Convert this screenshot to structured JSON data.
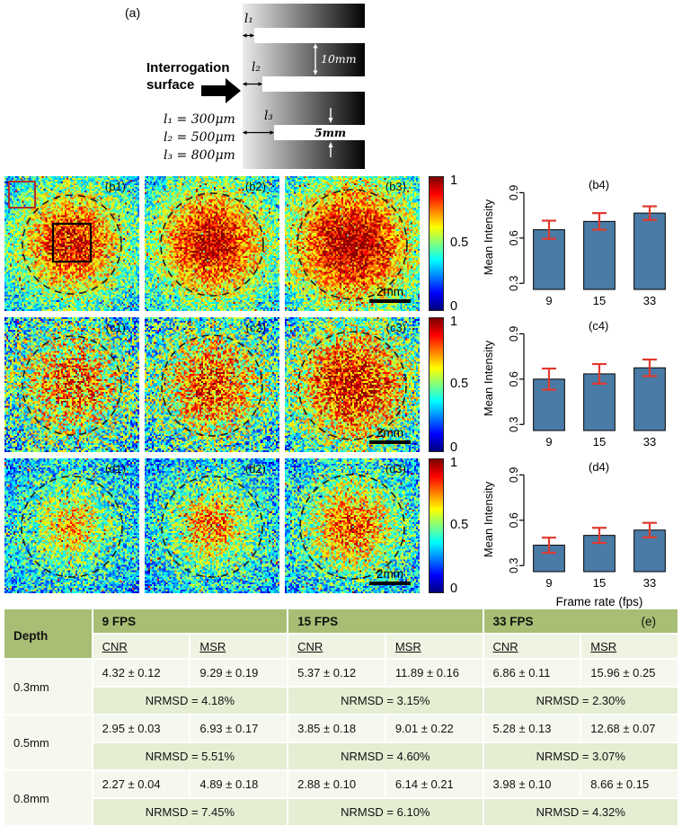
{
  "panel_a": {
    "label": "(a)",
    "interrogation_line1": "Interrogation",
    "interrogation_line2": "surface",
    "arrow_labels": [
      "l₁",
      "l₂",
      "l₃"
    ],
    "equations": [
      "l₁ = 300μm",
      "l₂ = 500μm",
      "l₃ = 800μm"
    ],
    "dim_10mm": "10mm",
    "dim_5mm": "5mm"
  },
  "colorbar_ticks": [
    "1",
    "0.5",
    "0"
  ],
  "heatmaps": {
    "rows": [
      {
        "depth": "0.3mm",
        "panels": [
          {
            "label": "(b1)",
            "seed": 101,
            "base": 0.52,
            "amp": 0.38,
            "sigma": 0.45,
            "noise": 0.2,
            "circle_r": 55,
            "roi": true
          },
          {
            "label": "(b2)",
            "seed": 102,
            "base": 0.52,
            "amp": 0.42,
            "sigma": 0.5,
            "noise": 0.2,
            "circle_r": 57
          },
          {
            "label": "(b3)",
            "seed": 103,
            "base": 0.53,
            "amp": 0.45,
            "sigma": 0.58,
            "noise": 0.2,
            "circle_r": 61,
            "scalebar": "2mm"
          }
        ]
      },
      {
        "depth": "0.5mm",
        "panels": [
          {
            "label": "(c1)",
            "seed": 201,
            "base": 0.5,
            "amp": 0.26,
            "sigma": 0.48,
            "noise": 0.3,
            "circle_r": 55
          },
          {
            "label": "(c2)",
            "seed": 202,
            "base": 0.5,
            "amp": 0.3,
            "sigma": 0.48,
            "noise": 0.28,
            "circle_r": 56
          },
          {
            "label": "(c3)",
            "seed": 203,
            "base": 0.51,
            "amp": 0.38,
            "sigma": 0.55,
            "noise": 0.26,
            "circle_r": 60,
            "scalebar": "2mm"
          }
        ]
      },
      {
        "depth": "0.8mm",
        "panels": [
          {
            "label": "(d1)",
            "seed": 301,
            "base": 0.46,
            "amp": 0.24,
            "sigma": 0.3,
            "noise": 0.22,
            "circle_r": 56
          },
          {
            "label": "(d2)",
            "seed": 302,
            "base": 0.46,
            "amp": 0.29,
            "sigma": 0.32,
            "noise": 0.22,
            "circle_r": 56
          },
          {
            "label": "(d3)",
            "seed": 303,
            "base": 0.47,
            "amp": 0.33,
            "sigma": 0.4,
            "noise": 0.23,
            "circle_r": 58,
            "scalebar": "2mm"
          }
        ]
      }
    ]
  },
  "chart_data": [
    {
      "type": "bar",
      "title": "(b4)",
      "ylabel": "Mean Intensity",
      "xlabel": "",
      "categories": [
        "9",
        "15",
        "33"
      ],
      "values": [
        0.655,
        0.71,
        0.765
      ],
      "errors": [
        0.06,
        0.055,
        0.045
      ],
      "yticks": [
        0.3,
        0.6,
        0.9
      ],
      "ylim": [
        0.3,
        0.9
      ],
      "bar_color": "#4a7ba6",
      "error_color": "#e03a2f"
    },
    {
      "type": "bar",
      "title": "(c4)",
      "ylabel": "Mean Intensity",
      "xlabel": "",
      "categories": [
        "9",
        "15",
        "33"
      ],
      "values": [
        0.6,
        0.635,
        0.675
      ],
      "errors": [
        0.07,
        0.065,
        0.055
      ],
      "yticks": [
        0.3,
        0.6,
        0.9
      ],
      "ylim": [
        0.3,
        0.9
      ],
      "bar_color": "#4a7ba6",
      "error_color": "#e03a2f"
    },
    {
      "type": "bar",
      "title": "(d4)",
      "ylabel": "Mean Intensity",
      "xlabel": "Frame rate (fps)",
      "categories": [
        "9",
        "15",
        "33"
      ],
      "values": [
        0.435,
        0.5,
        0.535
      ],
      "errors": [
        0.05,
        0.05,
        0.048
      ],
      "yticks": [
        0.3,
        0.6,
        0.9
      ],
      "ylim": [
        0.3,
        0.9
      ],
      "bar_color": "#4a7ba6",
      "error_color": "#e03a2f"
    }
  ],
  "table": {
    "label": "(e)",
    "header": {
      "depth": "Depth",
      "groups": [
        "9 FPS",
        "15 FPS",
        "33 FPS"
      ],
      "sub": [
        "CNR",
        "MSR"
      ]
    },
    "rows": [
      {
        "depth": "0.3mm",
        "values": [
          "4.32 ± 0.12",
          "9.29 ± 0.19",
          "5.37 ± 0.12",
          "11.89 ± 0.16",
          "6.86 ± 0.11",
          "15.96 ± 0.25"
        ],
        "nrmsd": [
          "NRMSD = 4.18%",
          "NRMSD = 3.15%",
          "NRMSD = 2.30%"
        ]
      },
      {
        "depth": "0.5mm",
        "values": [
          "2.95 ± 0.03",
          "6.93 ± 0.17",
          "3.85 ± 0.18",
          "9.01 ± 0.22",
          "5.28 ± 0.13",
          "12.68 ± 0.07"
        ],
        "nrmsd": [
          "NRMSD = 5.51%",
          "NRMSD = 4.60%",
          "NRMSD = 3.07%"
        ]
      },
      {
        "depth": "0.8mm",
        "values": [
          "2.27 ± 0.04",
          "4.89 ± 0.18",
          "2.88 ± 0.10",
          "6.14 ± 0.21",
          "3.98 ± 0.10",
          "8.66 ± 0.15"
        ],
        "nrmsd": [
          "NRMSD = 7.45%",
          "NRMSD = 6.10%",
          "NRMSD = 4.32%"
        ]
      }
    ]
  }
}
